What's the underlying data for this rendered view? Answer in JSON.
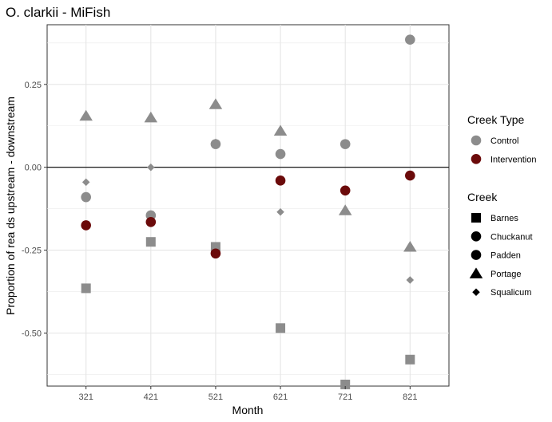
{
  "chart_data": {
    "type": "scatter",
    "title": "O. clarkii - MiFish",
    "xlabel": "Month",
    "ylabel": "Proportion of rea ds upstream - downstream",
    "categories": [
      "321",
      "421",
      "521",
      "621",
      "721",
      "821"
    ],
    "ylim": [
      -0.66,
      0.43
    ],
    "yticks": [
      0.25,
      0.0,
      -0.25,
      -0.5
    ],
    "ytick_labels": [
      "0.25",
      "0.00",
      "-0.25",
      "-0.50"
    ],
    "grid": true,
    "hline": 0,
    "legend_position": "right",
    "colors": {
      "Control": "#8c8c8c",
      "Intervention": "#6b0a0a"
    },
    "shapes": {
      "Barnes": "square",
      "Chuckanut": "circle",
      "Padden": "circle",
      "Portage": "triangle",
      "Squalicum": "diamond"
    },
    "legends": [
      {
        "title": "Creek Type",
        "items": [
          {
            "label": "Control",
            "color": "#8c8c8c",
            "shape": "circle"
          },
          {
            "label": "Intervention",
            "color": "#6b0a0a",
            "shape": "circle"
          }
        ]
      },
      {
        "title": "Creek",
        "items": [
          {
            "label": "Barnes",
            "color": "#000000",
            "shape": "square"
          },
          {
            "label": "Chuckanut",
            "color": "#000000",
            "shape": "circle"
          },
          {
            "label": "Padden",
            "color": "#000000",
            "shape": "circle"
          },
          {
            "label": "Portage",
            "color": "#000000",
            "shape": "triangle"
          },
          {
            "label": "Squalicum",
            "color": "#000000",
            "shape": "diamond"
          }
        ]
      }
    ],
    "points": [
      {
        "x": "321",
        "y": 0.155,
        "creek": "Portage",
        "type": "Control"
      },
      {
        "x": "321",
        "y": -0.045,
        "creek": "Squalicum",
        "type": "Control"
      },
      {
        "x": "321",
        "y": -0.09,
        "creek": "Chuckanut",
        "type": "Control"
      },
      {
        "x": "321",
        "y": -0.175,
        "creek": "Padden",
        "type": "Intervention"
      },
      {
        "x": "321",
        "y": -0.365,
        "creek": "Barnes",
        "type": "Control"
      },
      {
        "x": "421",
        "y": 0.15,
        "creek": "Portage",
        "type": "Control"
      },
      {
        "x": "421",
        "y": 0.0,
        "creek": "Squalicum",
        "type": "Control"
      },
      {
        "x": "421",
        "y": -0.145,
        "creek": "Chuckanut",
        "type": "Control"
      },
      {
        "x": "421",
        "y": -0.165,
        "creek": "Padden",
        "type": "Intervention"
      },
      {
        "x": "421",
        "y": -0.225,
        "creek": "Barnes",
        "type": "Control"
      },
      {
        "x": "521",
        "y": 0.19,
        "creek": "Portage",
        "type": "Control"
      },
      {
        "x": "521",
        "y": 0.075,
        "creek": "Squalicum",
        "type": "Control"
      },
      {
        "x": "521",
        "y": 0.07,
        "creek": "Chuckanut",
        "type": "Control"
      },
      {
        "x": "521",
        "y": -0.24,
        "creek": "Barnes",
        "type": "Control"
      },
      {
        "x": "521",
        "y": -0.26,
        "creek": "Padden",
        "type": "Intervention"
      },
      {
        "x": "621",
        "y": 0.11,
        "creek": "Portage",
        "type": "Control"
      },
      {
        "x": "621",
        "y": 0.04,
        "creek": "Chuckanut",
        "type": "Control"
      },
      {
        "x": "621",
        "y": -0.04,
        "creek": "Padden",
        "type": "Intervention"
      },
      {
        "x": "621",
        "y": -0.135,
        "creek": "Squalicum",
        "type": "Control"
      },
      {
        "x": "621",
        "y": -0.485,
        "creek": "Barnes",
        "type": "Control"
      },
      {
        "x": "721",
        "y": 0.07,
        "creek": "Chuckanut",
        "type": "Control"
      },
      {
        "x": "721",
        "y": -0.07,
        "creek": "Padden",
        "type": "Intervention"
      },
      {
        "x": "721",
        "y": -0.13,
        "creek": "Portage",
        "type": "Control"
      },
      {
        "x": "721",
        "y": -0.655,
        "creek": "Barnes",
        "type": "Control"
      },
      {
        "x": "821",
        "y": 0.385,
        "creek": "Chuckanut",
        "type": "Control"
      },
      {
        "x": "821",
        "y": -0.025,
        "creek": "Padden",
        "type": "Intervention"
      },
      {
        "x": "821",
        "y": -0.24,
        "creek": "Portage",
        "type": "Control"
      },
      {
        "x": "821",
        "y": -0.34,
        "creek": "Squalicum",
        "type": "Control"
      },
      {
        "x": "821",
        "y": -0.58,
        "creek": "Barnes",
        "type": "Control"
      }
    ]
  }
}
